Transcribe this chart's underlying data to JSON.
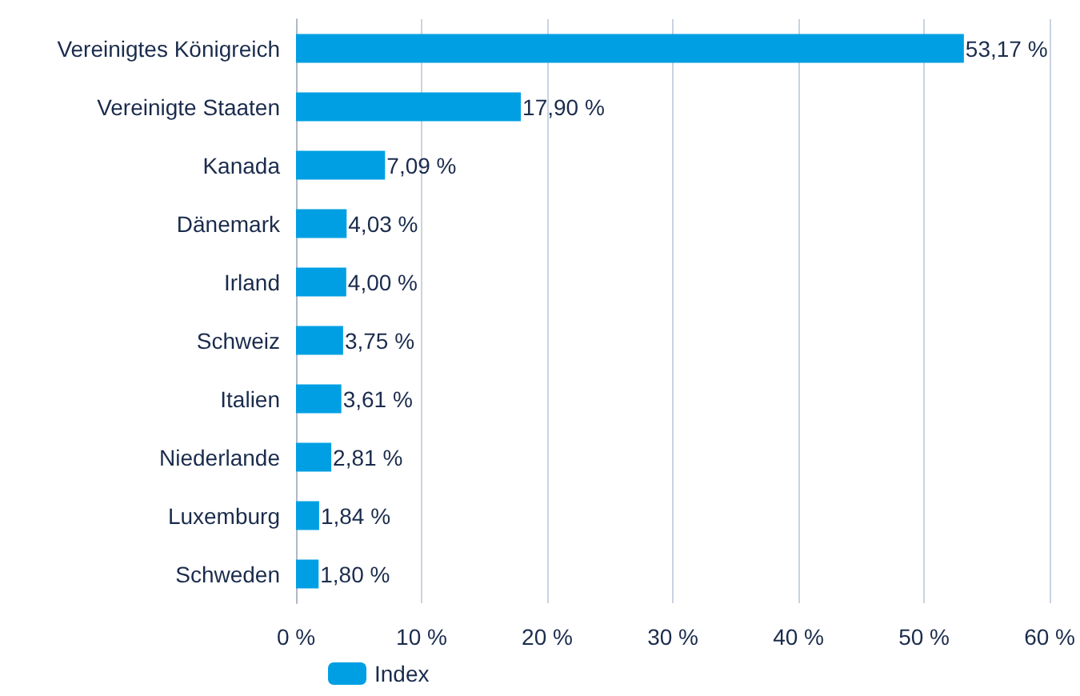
{
  "chart_data": {
    "type": "bar",
    "orientation": "horizontal",
    "categories": [
      "Vereinigtes Königreich",
      "Vereinigte Staaten",
      "Kanada",
      "Dänemark",
      "Irland",
      "Schweiz",
      "Italien",
      "Niederlande",
      "Luxemburg",
      "Schweden"
    ],
    "series": [
      {
        "name": "Index",
        "color": "#009fe3",
        "values": [
          53.17,
          17.9,
          7.09,
          4.03,
          4.0,
          3.75,
          3.61,
          2.81,
          1.84,
          1.8
        ],
        "value_labels": [
          "53,17 %",
          "17,90 %",
          "7,09 %",
          "4,03 %",
          "4,00 %",
          "3,75 %",
          "3,61 %",
          "2,81 %",
          "1,84 %",
          "1,80 %"
        ]
      }
    ],
    "xlim": [
      0,
      60
    ],
    "xticks": [
      {
        "value": 0,
        "label": "0 %"
      },
      {
        "value": 10,
        "label": "10 %"
      },
      {
        "value": 20,
        "label": "20 %"
      },
      {
        "value": 30,
        "label": "30 %"
      },
      {
        "value": 40,
        "label": "40 %"
      },
      {
        "value": 50,
        "label": "50 %"
      },
      {
        "value": 60,
        "label": "60 %"
      }
    ],
    "grid": "x",
    "legend": "bottom"
  }
}
